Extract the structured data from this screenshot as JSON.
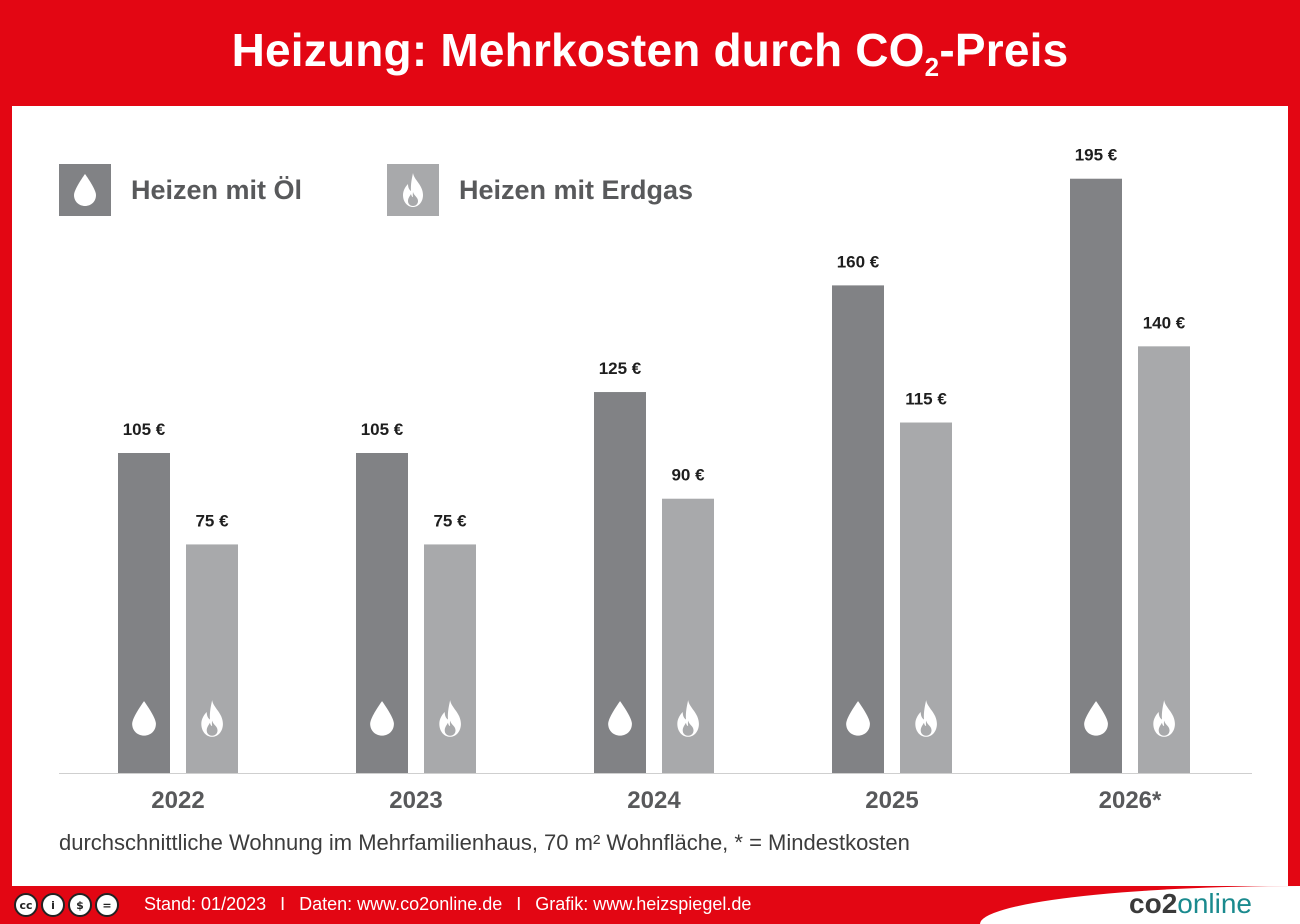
{
  "header": {
    "title_main": "Heizung: Mehrkosten durch CO",
    "title_sub": "2",
    "title_tail": "-Preis"
  },
  "legend": [
    {
      "label": "Heizen mit Öl",
      "icon": "oil-drop-icon",
      "color": "#818285"
    },
    {
      "label": "Heizen mit Erdgas",
      "icon": "flame-icon",
      "color": "#a8a9ab"
    }
  ],
  "chart_data": {
    "type": "bar",
    "title": "Heizung: Mehrkosten durch CO2-Preis",
    "categories": [
      "2022",
      "2023",
      "2024",
      "2025",
      "2026*"
    ],
    "series": [
      {
        "name": "Heizen mit Öl",
        "values": [
          105,
          105,
          125,
          160,
          195
        ],
        "labels": [
          "105 €",
          "105 €",
          "125 €",
          "160 €",
          "195 €"
        ],
        "color": "#818285"
      },
      {
        "name": "Heizen mit Erdgas",
        "values": [
          75,
          75,
          90,
          115,
          140
        ],
        "labels": [
          "75 €",
          "75 €",
          "90 €",
          "115 €",
          "140 €"
        ],
        "color": "#a8a9ab"
      }
    ],
    "xlabel": "",
    "ylabel": "",
    "ylim": [
      0,
      200
    ],
    "grid": false,
    "legend_position": "top-left"
  },
  "note": "durchschnittliche Wohnung im Mehrfamilienhaus, 70 m² Wohnfläche, * = Mindestkosten",
  "footer": {
    "license_icons": [
      "cc",
      "by",
      "nc",
      "nd"
    ],
    "stand": "Stand: 01/2023",
    "sep": "I",
    "daten": "Daten: www.co2online.de",
    "grafik": "Grafik: www.heizspiegel.de",
    "logo_co2": "co2",
    "logo_online": "online"
  },
  "colors": {
    "brand_red": "#e30613",
    "oil": "#818285",
    "gas": "#a8a9ab",
    "logo_teal": "#1a8a8e"
  }
}
